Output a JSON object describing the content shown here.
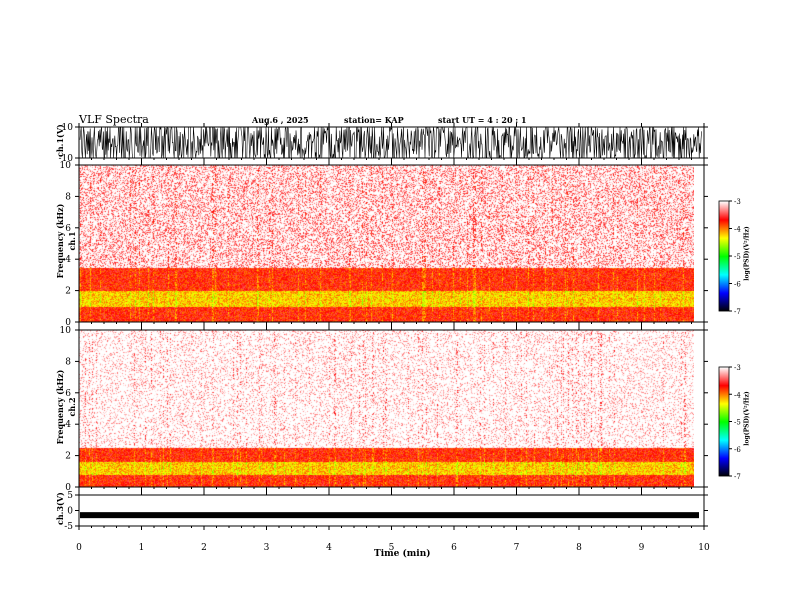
{
  "header": {
    "title": "VLF Spectra",
    "date": "Aug.6  , 2025",
    "station": "station= KAP",
    "start": "start  UT  =   4 : 20 : 1"
  },
  "chart_data": [
    {
      "type": "line",
      "name": "ch1-waveform",
      "ylabel": "ch.1(V)",
      "ylim": [
        -10,
        10
      ],
      "yticks": [
        "10",
        "-10"
      ],
      "xlim": [
        0,
        10
      ]
    },
    {
      "type": "heatmap",
      "name": "ch1-spectrogram",
      "ylabel_channel": "ch.1",
      "ylabel": "Frequency  (kHz)",
      "ylim": [
        0,
        10
      ],
      "yticks": [
        "0",
        "2",
        "4",
        "6",
        "8",
        "10"
      ],
      "xlim": [
        0,
        9.85
      ],
      "intense_bands_khz": [
        [
          0,
          3.5
        ],
        [
          1.0,
          2.0
        ]
      ]
    },
    {
      "type": "heatmap",
      "name": "ch2-spectrogram",
      "ylabel_channel": "ch.2",
      "ylabel": "Frequency  (kHz)",
      "ylim": [
        0,
        10
      ],
      "yticks": [
        "0",
        "2",
        "4",
        "6",
        "8",
        "10"
      ],
      "xlim": [
        0,
        9.85
      ],
      "intense_bands_khz": [
        [
          0,
          2.5
        ],
        [
          0.8,
          1.6
        ]
      ]
    },
    {
      "type": "line",
      "name": "ch3-waveform",
      "ylabel": "ch.3(V)",
      "ylim": [
        -5,
        5
      ],
      "yticks": [
        "5",
        "0",
        "-5"
      ],
      "xlim": [
        0,
        10
      ],
      "level": -1.5
    }
  ],
  "xaxis": {
    "label": "Time  (min)",
    "ticks": [
      "0",
      "1",
      "2",
      "3",
      "4",
      "5",
      "6",
      "7",
      "8",
      "9",
      "10"
    ]
  },
  "colorbar": {
    "label": "log(PSD)(V²/Hz)",
    "ticks": [
      "-3",
      "-4",
      "-5",
      "-6",
      "-7"
    ],
    "colors": [
      "#ffffff",
      "#ff0000",
      "#ffff00",
      "#00ff00",
      "#00ffff",
      "#0000ff",
      "#000000"
    ]
  }
}
